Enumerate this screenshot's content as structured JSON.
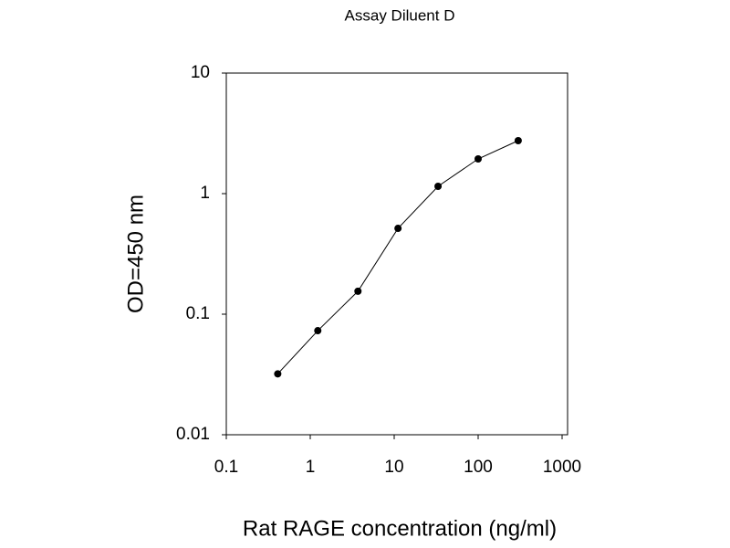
{
  "chart_data": {
    "type": "line",
    "title": "Assay Diluent D",
    "x_label": "Rat RAGE concentration (ng/ml)",
    "y_label": "OD=450 nm",
    "x": [
      0.41,
      1.23,
      3.7,
      11.1,
      33.3,
      100,
      300
    ],
    "series": [
      {
        "color": "#000000",
        "values": [
          0.032,
          0.073,
          0.155,
          0.515,
          1.15,
          1.94,
          2.75
        ]
      }
    ],
    "xlim": [
      0.1,
      1000
    ],
    "ylim": [
      0.01,
      10
    ],
    "xticks": [
      0.1,
      1,
      10,
      100,
      1000
    ],
    "yticks": [
      0.01,
      0.1,
      1,
      10
    ],
    "xscale": "log",
    "yscale": "log"
  }
}
